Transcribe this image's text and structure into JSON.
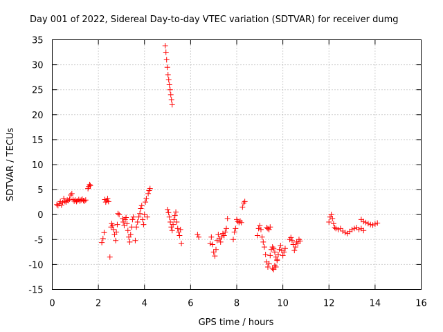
{
  "chart_data": {
    "type": "scatter",
    "title": "Day 001 of 2022, Sidereal Day-to-day VTEC variation (SDTVAR) for receiver dumg",
    "xlabel": "GPS time / hours",
    "ylabel": "SDTVAR / TECUs",
    "xlim": [
      0,
      16
    ],
    "ylim": [
      -15,
      35
    ],
    "xticks": [
      0,
      2,
      4,
      6,
      8,
      10,
      12,
      14,
      16
    ],
    "yticks": [
      -15,
      -10,
      -5,
      0,
      5,
      10,
      15,
      20,
      25,
      30,
      35
    ],
    "grid": true,
    "marker": "+",
    "color": "#ff0000",
    "segments": [
      {
        "name": "s1",
        "points": [
          [
            0.2,
            2.0
          ],
          [
            0.25,
            1.8
          ],
          [
            0.3,
            2.2
          ],
          [
            0.35,
            2.6
          ],
          [
            0.4,
            1.9
          ],
          [
            0.45,
            2.4
          ],
          [
            0.5,
            3.2
          ],
          [
            0.55,
            2.6
          ],
          [
            0.6,
            2.5
          ],
          [
            0.65,
            2.9
          ],
          [
            0.7,
            2.8
          ],
          [
            0.75,
            3.1
          ],
          [
            0.8,
            3.9
          ],
          [
            0.85,
            4.2
          ],
          [
            0.9,
            3.0
          ],
          [
            0.95,
            2.7
          ],
          [
            1.0,
            2.9
          ],
          [
            1.05,
            2.6
          ],
          [
            1.1,
            2.8
          ],
          [
            1.15,
            3.0
          ],
          [
            1.2,
            2.7
          ],
          [
            1.25,
            2.9
          ],
          [
            1.3,
            3.1
          ],
          [
            1.35,
            2.8
          ],
          [
            1.4,
            2.7
          ],
          [
            1.45,
            2.9
          ]
        ]
      },
      {
        "name": "s2",
        "points": [
          [
            1.55,
            5.2
          ],
          [
            1.58,
            5.6
          ],
          [
            1.62,
            6.0
          ],
          [
            1.65,
            5.8
          ]
        ]
      },
      {
        "name": "s3",
        "points": [
          [
            2.15,
            -5.6
          ],
          [
            2.2,
            -4.8
          ],
          [
            2.25,
            -3.6
          ],
          [
            2.28,
            3.0
          ],
          [
            2.32,
            2.5
          ],
          [
            2.36,
            2.8
          ],
          [
            2.4,
            3.2
          ],
          [
            2.44,
            2.6
          ]
        ]
      },
      {
        "name": "s4",
        "points": [
          [
            2.5,
            -8.5
          ],
          [
            2.55,
            -2.5
          ],
          [
            2.58,
            -1.8
          ],
          [
            2.62,
            -2.2
          ],
          [
            2.66,
            -3.0
          ],
          [
            2.7,
            -4.0
          ],
          [
            2.75,
            -5.2
          ],
          [
            2.78,
            -3.5
          ],
          [
            2.82,
            -2.0
          ],
          [
            2.85,
            0.2
          ],
          [
            2.9,
            0.0
          ]
        ]
      },
      {
        "name": "s5",
        "points": [
          [
            3.05,
            -0.8
          ],
          [
            3.08,
            -1.5
          ],
          [
            3.12,
            -2.2
          ],
          [
            3.16,
            -1.0
          ],
          [
            3.2,
            -0.6
          ],
          [
            3.24,
            -1.8
          ],
          [
            3.28,
            -3.2
          ],
          [
            3.32,
            -4.5
          ],
          [
            3.36,
            -5.5
          ],
          [
            3.4,
            -4.0
          ],
          [
            3.44,
            -2.5
          ],
          [
            3.48,
            -1.0
          ],
          [
            3.52,
            -0.5
          ]
        ]
      },
      {
        "name": "s6",
        "points": [
          [
            3.6,
            -5.2
          ],
          [
            3.65,
            -2.5
          ],
          [
            3.7,
            -1.5
          ],
          [
            3.75,
            -0.5
          ],
          [
            3.8,
            0.2
          ],
          [
            3.84,
            1.2
          ],
          [
            3.88,
            1.8
          ],
          [
            3.92,
            -1.0
          ],
          [
            3.96,
            -2.0
          ],
          [
            4.0,
            0.0
          ],
          [
            4.04,
            2.5
          ],
          [
            4.08,
            3.2
          ],
          [
            4.12,
            -0.5
          ],
          [
            4.16,
            4.2
          ],
          [
            4.2,
            4.8
          ],
          [
            4.24,
            5.2
          ]
        ]
      },
      {
        "name": "s7",
        "points": [
          [
            4.9,
            33.8
          ],
          [
            4.93,
            32.5
          ],
          [
            4.96,
            31.0
          ],
          [
            4.99,
            29.5
          ],
          [
            5.02,
            28.0
          ],
          [
            5.05,
            27.0
          ],
          [
            5.08,
            26.0
          ],
          [
            5.11,
            25.0
          ],
          [
            5.14,
            24.0
          ],
          [
            5.17,
            23.0
          ],
          [
            5.2,
            22.0
          ]
        ]
      },
      {
        "name": "s8",
        "points": [
          [
            5.0,
            1.0
          ],
          [
            5.04,
            0.4
          ],
          [
            5.08,
            -0.5
          ],
          [
            5.12,
            -1.5
          ],
          [
            5.16,
            -2.5
          ],
          [
            5.2,
            -3.2
          ],
          [
            5.24,
            -2.0
          ],
          [
            5.28,
            -1.0
          ],
          [
            5.32,
            -0.2
          ],
          [
            5.36,
            0.5
          ],
          [
            5.4,
            -1.5
          ],
          [
            5.44,
            -2.8
          ],
          [
            5.48,
            -3.5
          ],
          [
            5.52,
            -4.2
          ],
          [
            5.56,
            -3.0
          ],
          [
            5.6,
            -5.8
          ]
        ]
      },
      {
        "name": "s9",
        "points": [
          [
            6.3,
            -4.0
          ],
          [
            6.35,
            -4.5
          ]
        ]
      },
      {
        "name": "s10",
        "points": [
          [
            6.85,
            -5.8
          ],
          [
            6.9,
            -4.5
          ],
          [
            6.95,
            -6.0
          ],
          [
            7.0,
            -7.5
          ],
          [
            7.05,
            -8.3
          ],
          [
            7.1,
            -7.0
          ],
          [
            7.15,
            -5.2
          ],
          [
            7.2,
            -4.0
          ],
          [
            7.25,
            -4.8
          ],
          [
            7.3,
            -5.5
          ],
          [
            7.35,
            -4.5
          ],
          [
            7.4,
            -3.8
          ],
          [
            7.45,
            -4.2
          ],
          [
            7.5,
            -3.5
          ],
          [
            7.55,
            -2.8
          ],
          [
            7.6,
            -0.8
          ]
        ]
      },
      {
        "name": "s11",
        "points": [
          [
            7.85,
            -5.0
          ],
          [
            7.9,
            -3.5
          ],
          [
            7.95,
            -2.8
          ],
          [
            8.0,
            -1.0
          ],
          [
            8.05,
            -1.4
          ],
          [
            8.1,
            -1.6
          ],
          [
            8.15,
            -1.3
          ],
          [
            8.2,
            -1.6
          ],
          [
            8.25,
            1.5
          ],
          [
            8.3,
            2.3
          ],
          [
            8.35,
            2.6
          ]
        ]
      },
      {
        "name": "s12",
        "points": [
          [
            8.9,
            -4.2
          ],
          [
            8.95,
            -2.8
          ],
          [
            9.0,
            -2.2
          ],
          [
            9.05,
            -3.0
          ],
          [
            9.1,
            -4.5
          ],
          [
            9.15,
            -5.5
          ],
          [
            9.2,
            -6.5
          ],
          [
            9.25,
            -8.0
          ],
          [
            9.3,
            -9.5
          ],
          [
            9.35,
            -10.5
          ],
          [
            9.4,
            -9.8
          ],
          [
            9.45,
            -8.2
          ],
          [
            9.5,
            -7.0
          ],
          [
            9.55,
            -6.5
          ],
          [
            9.6,
            -6.8
          ],
          [
            9.65,
            -7.5
          ],
          [
            9.7,
            -8.5
          ],
          [
            9.75,
            -9.0
          ]
        ]
      },
      {
        "name": "s13",
        "points": [
          [
            9.3,
            -2.6
          ],
          [
            9.35,
            -2.8
          ],
          [
            9.4,
            -3.0
          ],
          [
            9.45,
            -2.5
          ]
        ]
      },
      {
        "name": "s14",
        "points": [
          [
            9.55,
            -10.8
          ],
          [
            9.6,
            -11.0
          ],
          [
            9.65,
            -10.2
          ],
          [
            9.7,
            -10.5
          ],
          [
            9.75,
            -9.2
          ],
          [
            9.8,
            -8.0
          ],
          [
            9.85,
            -7.0
          ],
          [
            9.9,
            -6.2
          ],
          [
            9.95,
            -7.2
          ],
          [
            10.0,
            -8.2
          ],
          [
            10.05,
            -7.5
          ],
          [
            10.1,
            -6.8
          ]
        ]
      },
      {
        "name": "s15",
        "points": [
          [
            10.3,
            -5.0
          ],
          [
            10.35,
            -4.6
          ],
          [
            10.4,
            -5.2
          ],
          [
            10.45,
            -6.0
          ],
          [
            10.5,
            -7.2
          ],
          [
            10.55,
            -6.5
          ],
          [
            10.6,
            -5.5
          ],
          [
            10.65,
            -5.8
          ],
          [
            10.7,
            -5.0
          ],
          [
            10.75,
            -5.3
          ]
        ]
      },
      {
        "name": "s16",
        "points": [
          [
            12.0,
            -1.5
          ],
          [
            12.05,
            -0.5
          ],
          [
            12.1,
            0.0
          ],
          [
            12.15,
            -0.8
          ],
          [
            12.2,
            -1.8
          ],
          [
            12.25,
            -2.6
          ],
          [
            12.3,
            -2.8
          ]
        ]
      },
      {
        "name": "s17",
        "points": [
          [
            12.4,
            -3.0
          ],
          [
            12.5,
            -2.8
          ],
          [
            12.6,
            -3.3
          ],
          [
            12.7,
            -3.6
          ],
          [
            12.8,
            -3.8
          ],
          [
            12.9,
            -3.4
          ],
          [
            13.0,
            -3.0
          ],
          [
            13.1,
            -2.8
          ],
          [
            13.2,
            -2.6
          ],
          [
            13.3,
            -3.0
          ],
          [
            13.4,
            -2.8
          ],
          [
            13.5,
            -3.2
          ]
        ]
      },
      {
        "name": "s18",
        "points": [
          [
            13.4,
            -1.0
          ],
          [
            13.5,
            -1.4
          ],
          [
            13.6,
            -1.6
          ],
          [
            13.7,
            -1.8
          ],
          [
            13.8,
            -2.0
          ],
          [
            13.9,
            -2.1
          ],
          [
            14.0,
            -1.9
          ],
          [
            14.1,
            -1.7
          ]
        ]
      }
    ]
  }
}
